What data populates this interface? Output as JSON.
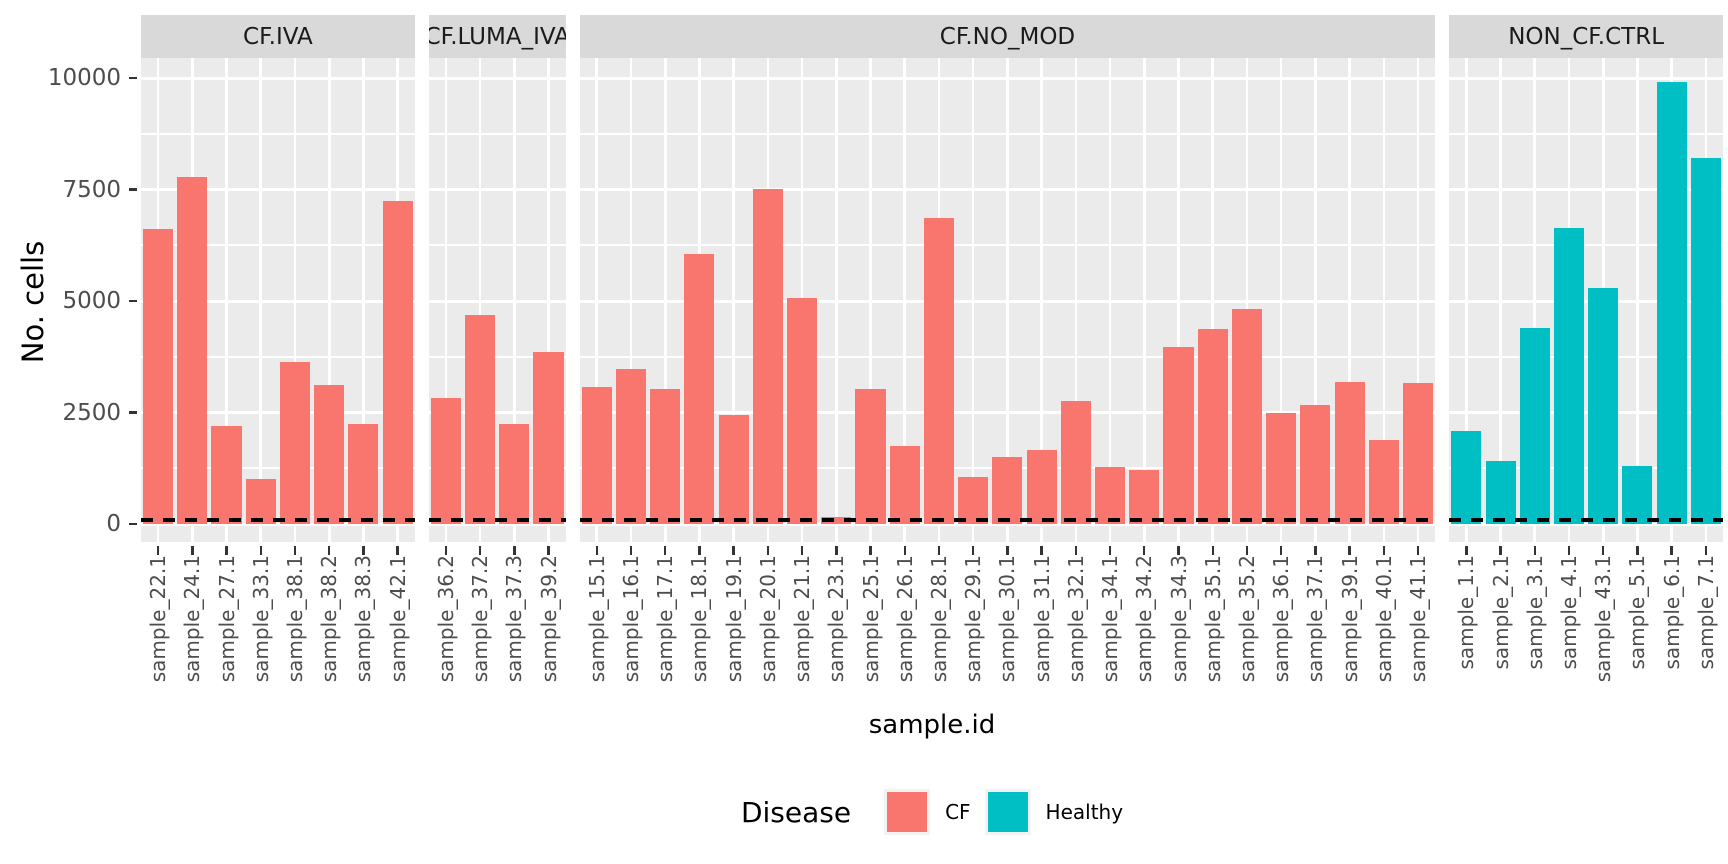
{
  "colors": {
    "cf": "#F8766D",
    "healthy": "#00BFC4",
    "panel_bg": "#EBEBEB",
    "strip_bg": "#D9D9D9",
    "grid": "#FFFFFF",
    "axis_text": "#4D4D4D",
    "tick_mark": "#333333",
    "hline": "#000000"
  },
  "chart_data": {
    "type": "bar",
    "title": "",
    "xlabel": "sample.id",
    "ylabel": "No. cells",
    "ylim": [
      0,
      10000
    ],
    "grid": "on",
    "legend_position": "bottom",
    "yticks": [
      {
        "value": 0,
        "label": "0"
      },
      {
        "value": 2500,
        "label": "2500"
      },
      {
        "value": 5000,
        "label": "5000"
      },
      {
        "value": 7500,
        "label": "7500"
      },
      {
        "value": 10000,
        "label": "10000"
      }
    ],
    "yminor": [
      1250,
      3750,
      6250,
      8750
    ],
    "hline": {
      "value": 100,
      "style": "dashed"
    },
    "legend": {
      "title": "Disease",
      "entries": [
        {
          "label": "CF",
          "color_key": "cf"
        },
        {
          "label": "Healthy",
          "color_key": "healthy"
        }
      ]
    },
    "facets": [
      {
        "label": "CF.IVA",
        "disease": "CF",
        "categories": [
          "sample_22.1",
          "sample_24.1",
          "sample_27.1",
          "sample_33.1",
          "sample_38.1",
          "sample_38.2",
          "sample_38.3",
          "sample_42.1"
        ],
        "values": [
          6610,
          7780,
          2200,
          1010,
          3630,
          3120,
          2240,
          7240
        ]
      },
      {
        "label": "CF.LUMA_IVA",
        "disease": "CF",
        "categories": [
          "sample_36.2",
          "sample_37.2",
          "sample_37.3",
          "sample_39.2"
        ],
        "values": [
          2830,
          4690,
          2240,
          3860
        ]
      },
      {
        "label": "CF.NO_MOD",
        "disease": "CF",
        "categories": [
          "sample_15.1",
          "sample_16.1",
          "sample_17.1",
          "sample_18.1",
          "sample_19.1",
          "sample_20.1",
          "sample_21.1",
          "sample_23.1",
          "sample_25.1",
          "sample_26.1",
          "sample_28.1",
          "sample_29.1",
          "sample_30.1",
          "sample_31.1",
          "sample_32.1",
          "sample_34.1",
          "sample_34.2",
          "sample_34.3",
          "sample_35.1",
          "sample_35.2",
          "sample_36.1",
          "sample_37.1",
          "sample_39.1",
          "sample_40.1",
          "sample_41.1"
        ],
        "values": [
          3070,
          3480,
          3030,
          6050,
          2440,
          7510,
          5070,
          160,
          3030,
          1750,
          6860,
          1050,
          1500,
          1660,
          2760,
          1280,
          1210,
          3970,
          4370,
          4820,
          2490,
          2670,
          3180,
          1880,
          3160
        ]
      },
      {
        "label": "NON_CF.CTRL",
        "disease": "Healthy",
        "categories": [
          "sample_1.1",
          "sample_2.1",
          "sample_3.1",
          "sample_4.1",
          "sample_43.1",
          "sample_5.1",
          "sample_6.1",
          "sample_7.1"
        ],
        "values": [
          2090,
          1410,
          4390,
          6640,
          5290,
          1300,
          9910,
          8210
        ]
      }
    ]
  }
}
